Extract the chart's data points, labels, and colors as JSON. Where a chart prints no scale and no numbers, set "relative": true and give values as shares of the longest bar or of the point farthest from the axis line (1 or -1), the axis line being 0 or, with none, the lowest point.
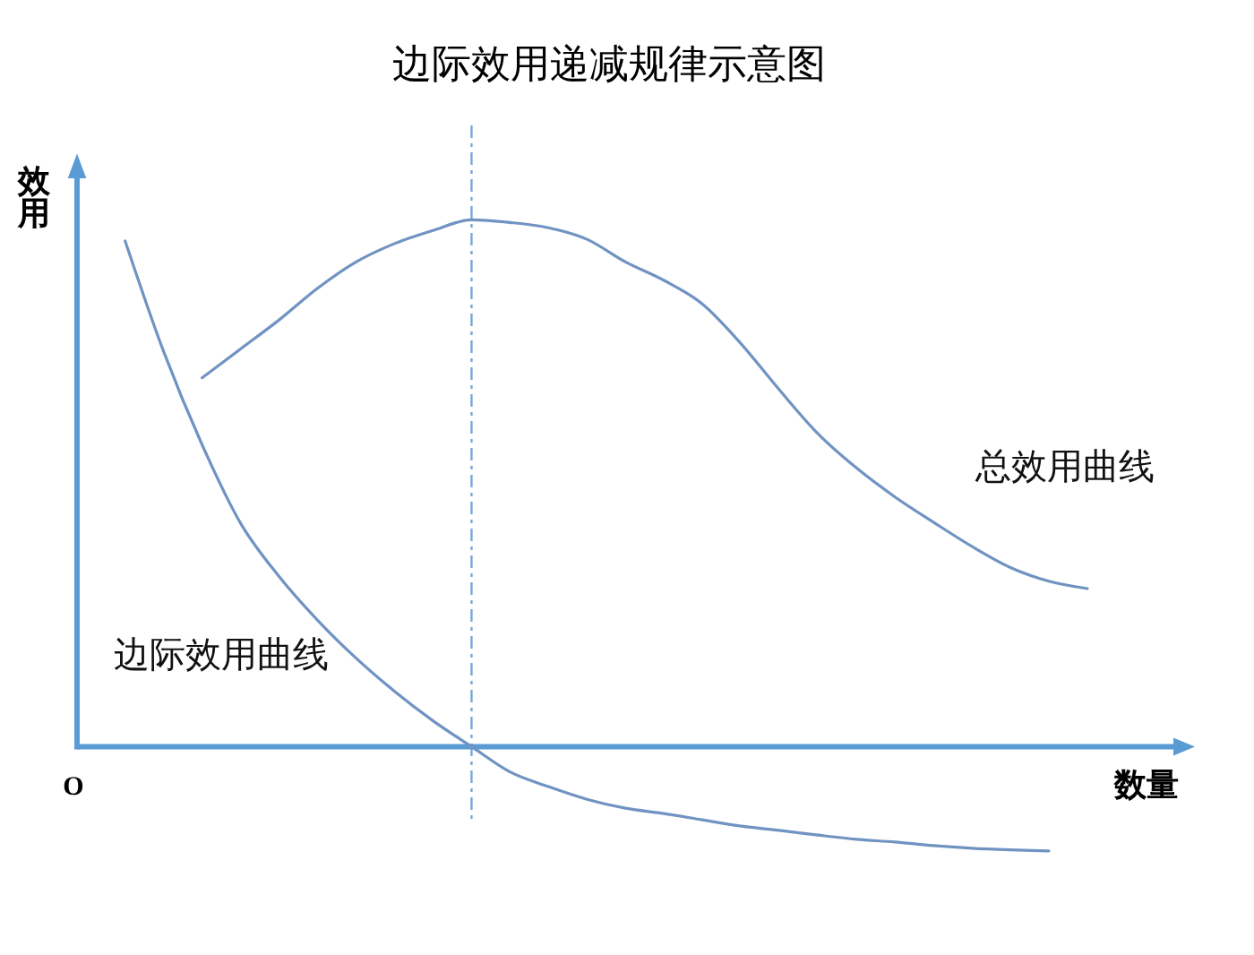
{
  "chart_data": {
    "type": "line",
    "title": "边际效用递减规律示意图",
    "xlabel": "数量",
    "ylabel": "效用",
    "annotations": [
      "O"
    ],
    "categories": [
      null,
      null,
      null,
      null,
      null,
      null,
      null,
      null,
      null,
      null,
      null,
      null,
      null,
      null,
      null,
      null,
      null,
      null,
      null,
      null,
      null,
      null,
      null,
      null,
      null,
      null
    ],
    "relative": true,
    "line_style": "solid",
    "tick_labels": false,
    "series": [
      {
        "name": "总效用曲线",
        "color": "#7093c2",
        "values": [
          null,
          null,
          0.7,
          0.755,
          0.81,
          0.87,
          0.92,
          0.955,
          0.98,
          1.0,
          0.995,
          0.985,
          0.963,
          0.92,
          0.885,
          0.84,
          0.765,
          0.677,
          0.594,
          0.529,
          0.474,
          0.426,
          0.38,
          0.34,
          0.314,
          0.3
        ]
      },
      {
        "name": "边际效用曲线",
        "color": "#7093c2",
        "values": [
          0.96,
          0.75,
          0.573,
          0.424,
          0.323,
          0.24,
          0.168,
          0.105,
          0.049,
          0,
          -0.048,
          -0.076,
          -0.1,
          -0.117,
          -0.127,
          -0.139,
          -0.151,
          -0.159,
          -0.168,
          -0.176,
          -0.181,
          -0.188,
          -0.193,
          -0.196,
          -0.198,
          null
        ]
      }
    ],
    "ref_lines": [
      {
        "axis": "y",
        "value": 0,
        "color": "#5b9bd5",
        "line_style": "solid"
      }
    ]
  }
}
